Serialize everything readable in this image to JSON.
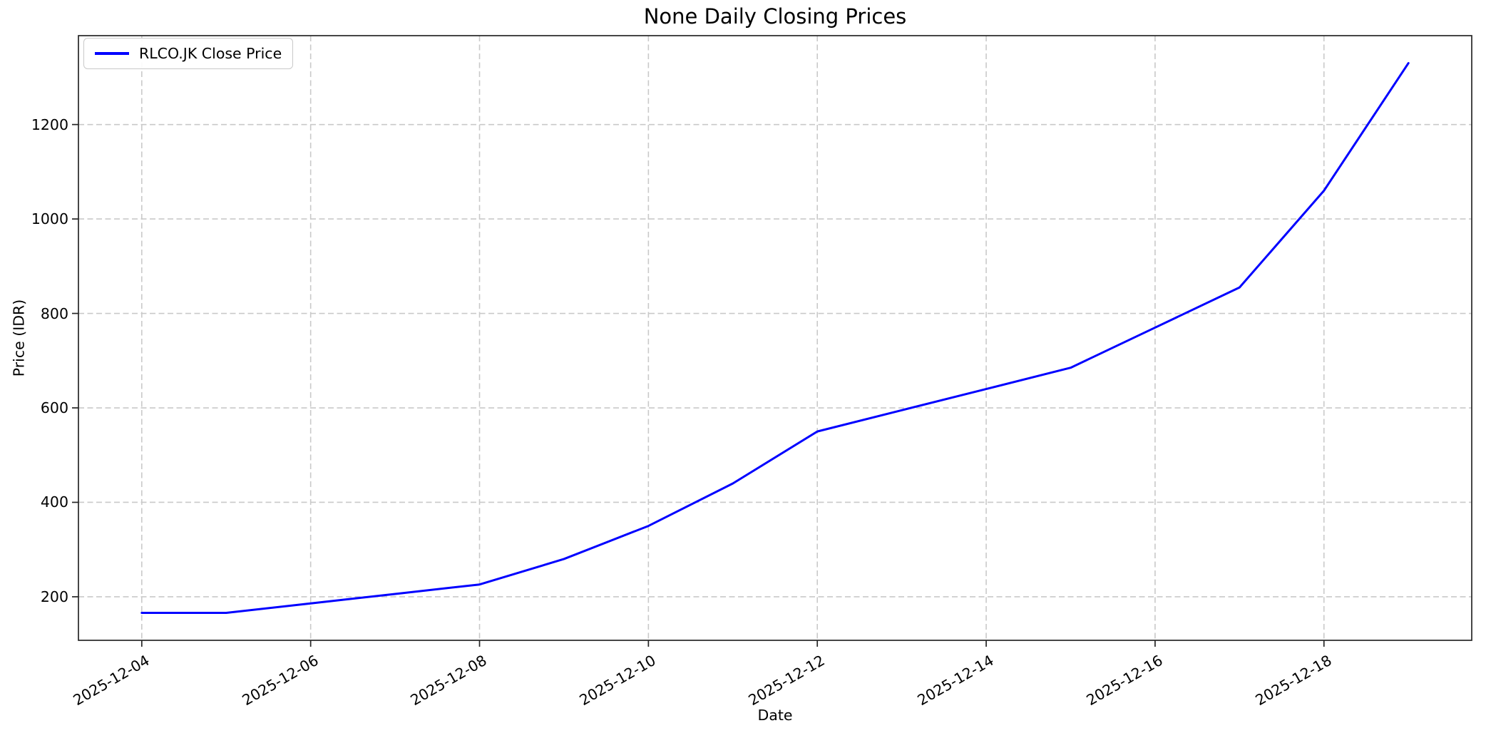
{
  "chart_data": {
    "type": "line",
    "title": "None Daily Closing Prices",
    "xlabel": "Date",
    "ylabel": "Price (IDR)",
    "x": [
      "2025-12-04",
      "2025-12-05",
      "2025-12-06",
      "2025-12-07",
      "2025-12-08",
      "2025-12-09",
      "2025-12-10",
      "2025-12-11",
      "2025-12-12",
      "2025-12-13",
      "2025-12-14",
      "2025-12-15",
      "2025-12-16",
      "2025-12-17",
      "2025-12-18",
      "2025-12-19"
    ],
    "series": [
      {
        "name": "RLCO.JK Close Price",
        "color": "#0000ff",
        "values": [
          166,
          166,
          186,
          206,
          226,
          280,
          350,
          440,
          550,
          595,
          640,
          685,
          770,
          855,
          1060,
          1330
        ]
      }
    ],
    "xtick_labels": [
      "2025-12-04",
      "2025-12-06",
      "2025-12-08",
      "2025-12-10",
      "2025-12-12",
      "2025-12-14",
      "2025-12-16",
      "2025-12-18"
    ],
    "ytick_labels": [
      200,
      400,
      600,
      800,
      1000,
      1200
    ],
    "xlim_day_index": [
      -0.75,
      15.75
    ],
    "ylim": [
      107.8,
      1388.2
    ],
    "grid": true,
    "grid_linestyle": "dashed",
    "x_tick_rotation_deg": 30,
    "legend": {
      "position": "upper-left",
      "entries": [
        {
          "label": "RLCO.JK Close Price",
          "color": "#0000ff"
        }
      ]
    },
    "colors": {
      "line": "#0000ff",
      "grid": "#c9c9c9",
      "spine": "#262626",
      "text": "#000000",
      "background": "#ffffff"
    }
  }
}
